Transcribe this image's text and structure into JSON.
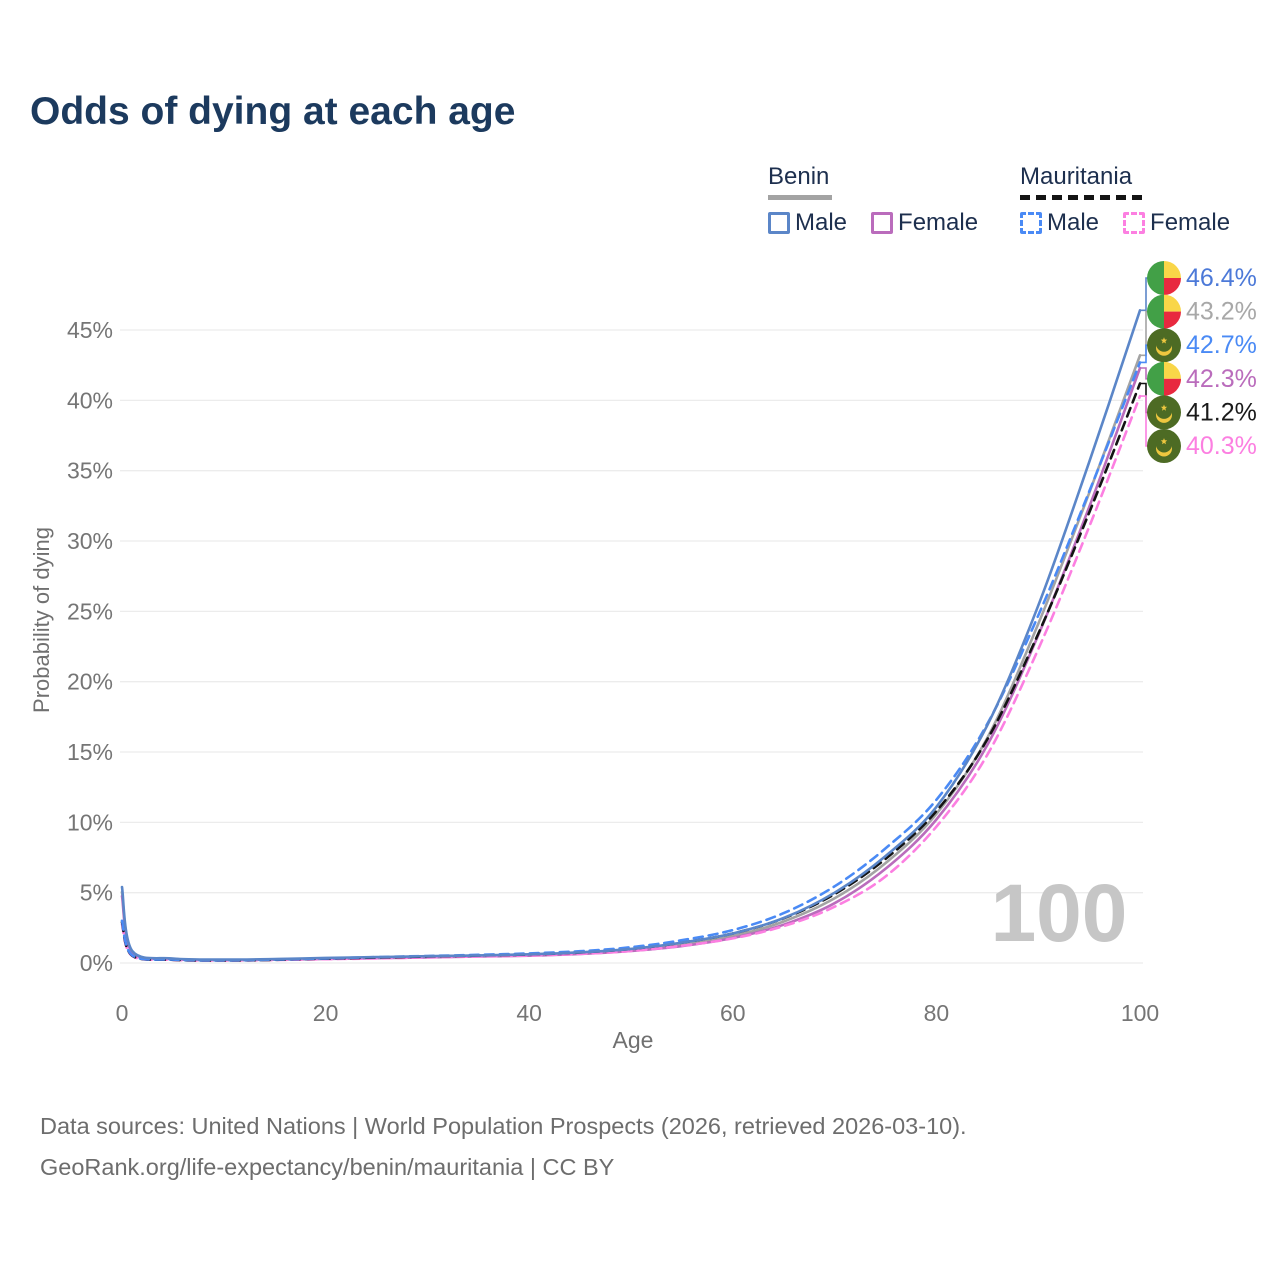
{
  "title": "Odds of dying at each age",
  "legend": {
    "groups": [
      {
        "title": "Benin",
        "line_style": "solid",
        "underline_color": "#a3a3a3",
        "items": [
          {
            "label": "Male",
            "color": "#5b86c8"
          },
          {
            "label": "Female",
            "color": "#ba6cbc"
          }
        ]
      },
      {
        "title": "Mauritania",
        "line_style": "dashed",
        "underline_color": "#141414",
        "items": [
          {
            "label": "Male",
            "color": "#4a8af5"
          },
          {
            "label": "Female",
            "color": "#fc7fe1"
          }
        ]
      }
    ]
  },
  "chart_data": {
    "type": "line",
    "title": "Odds of dying at each age",
    "xlabel": "Age",
    "ylabel": "Probability of dying",
    "xlim": [
      0,
      100
    ],
    "ylim_percent": [
      0,
      48
    ],
    "x_ticks": [
      0,
      20,
      40,
      60,
      80,
      100
    ],
    "y_ticks_percent": [
      0,
      5,
      10,
      15,
      20,
      25,
      30,
      35,
      40,
      45
    ],
    "grid": "horizontal",
    "legend_position": "top-right",
    "watermark": "100",
    "ages": [
      0,
      1,
      5,
      10,
      15,
      20,
      25,
      30,
      35,
      40,
      45,
      50,
      55,
      60,
      65,
      70,
      75,
      80,
      85,
      90,
      95,
      100
    ],
    "series": [
      {
        "name": "Benin Male",
        "country": "Benin",
        "sex": "Male",
        "flag": "benin",
        "color": "#5b86c8",
        "dash": "solid",
        "end_label": "46.4%",
        "end_value_percent": 46.4,
        "label_color": "#4c79d8",
        "values_percent": [
          5.4,
          0.85,
          0.32,
          0.24,
          0.28,
          0.36,
          0.42,
          0.48,
          0.54,
          0.62,
          0.76,
          1.0,
          1.45,
          2.1,
          3.2,
          5.0,
          7.6,
          11.1,
          16.9,
          25.4,
          35.6,
          46.4
        ]
      },
      {
        "name": "Benin Both sexes",
        "country": "Benin",
        "sex": "Both",
        "flag": "benin",
        "color": "#a3a3a3",
        "dash": "solid",
        "end_label": "43.2%",
        "end_value_percent": 43.2,
        "label_color": "#a8a8a8",
        "values_percent": [
          5.05,
          0.8,
          0.3,
          0.22,
          0.26,
          0.33,
          0.39,
          0.44,
          0.5,
          0.57,
          0.7,
          0.92,
          1.32,
          1.92,
          2.95,
          4.6,
          7.1,
          10.6,
          16.0,
          24.1,
          33.4,
          43.2
        ]
      },
      {
        "name": "Mauritania Male",
        "country": "Mauritania",
        "sex": "Male",
        "flag": "mauritania",
        "color": "#4a8af5",
        "dash": "dashed",
        "end_label": "42.7%",
        "end_value_percent": 42.7,
        "label_color": "#4a8af5",
        "values_percent": [
          3.0,
          0.55,
          0.24,
          0.19,
          0.24,
          0.33,
          0.42,
          0.5,
          0.58,
          0.68,
          0.84,
          1.12,
          1.62,
          2.34,
          3.55,
          5.45,
          8.15,
          11.6,
          17.0,
          24.7,
          33.5,
          42.7
        ]
      },
      {
        "name": "Benin Female",
        "country": "Benin",
        "sex": "Female",
        "flag": "benin",
        "color": "#ba6cbc",
        "dash": "solid",
        "end_label": "42.3%",
        "end_value_percent": 42.3,
        "label_color": "#ba6cbc",
        "values_percent": [
          4.75,
          0.75,
          0.28,
          0.2,
          0.24,
          0.29,
          0.34,
          0.4,
          0.46,
          0.52,
          0.64,
          0.85,
          1.2,
          1.78,
          2.72,
          4.25,
          6.7,
          10.2,
          15.5,
          23.3,
          32.4,
          42.3
        ]
      },
      {
        "name": "Mauritania Both sexes",
        "country": "Mauritania",
        "sex": "Both",
        "flag": "mauritania",
        "color": "#141414",
        "dash": "dashed",
        "end_label": "41.2%",
        "end_value_percent": 41.2,
        "label_color": "#1a1a1a",
        "values_percent": [
          2.9,
          0.52,
          0.23,
          0.18,
          0.23,
          0.31,
          0.39,
          0.46,
          0.53,
          0.61,
          0.75,
          1.0,
          1.45,
          2.1,
          3.18,
          4.9,
          7.4,
          10.8,
          15.9,
          23.4,
          32.0,
          41.2
        ]
      },
      {
        "name": "Mauritania Female",
        "country": "Mauritania",
        "sex": "Female",
        "flag": "mauritania",
        "color": "#fc7fe1",
        "dash": "dashed",
        "end_label": "40.3%",
        "end_value_percent": 40.3,
        "label_color": "#fc7fe1",
        "values_percent": [
          2.75,
          0.5,
          0.22,
          0.17,
          0.21,
          0.27,
          0.33,
          0.4,
          0.46,
          0.53,
          0.65,
          0.85,
          1.22,
          1.75,
          2.62,
          4.0,
          6.15,
          9.7,
          14.8,
          22.3,
          31.0,
          40.3
        ]
      }
    ],
    "flag_colors": {
      "benin": {
        "green": "#42a047",
        "yellow": "#f9d648",
        "red": "#e8293f"
      },
      "mauritania": {
        "green": "#4d6b24",
        "yellow": "#eec73f"
      }
    }
  },
  "footer": {
    "line1": "Data sources: United Nations | World Population Prospects (2026, retrieved 2026-03-10).",
    "line2": "GeoRank.org/life-expectancy/benin/mauritania | CC BY"
  }
}
